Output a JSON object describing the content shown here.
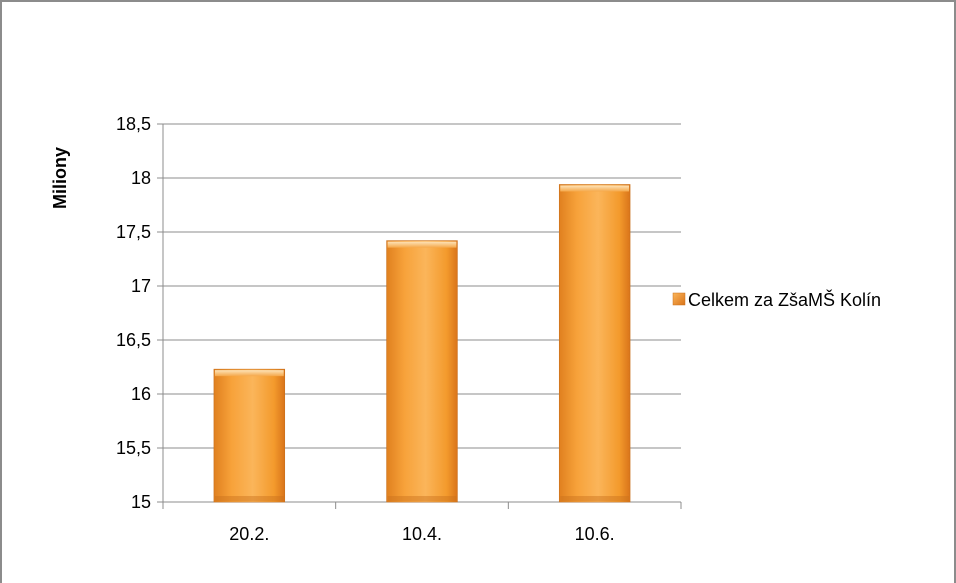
{
  "chart_data": {
    "type": "bar",
    "title": "",
    "xlabel": "",
    "ylabel": "Miliony",
    "ylim": [
      15,
      18.5
    ],
    "ytick_values": [
      15,
      15.5,
      16,
      16.5,
      17,
      17.5,
      18,
      18.5
    ],
    "ytick_labels": [
      "15",
      "15,5",
      "16",
      "16,5",
      "17",
      "17,5",
      "18",
      "18,5"
    ],
    "categories": [
      "20.2.",
      "10.4.",
      "10.6."
    ],
    "series": [
      {
        "name": "Celkem za ZšaMŠ Kolín",
        "values": [
          16.23,
          17.42,
          17.94
        ],
        "color": "#f39a2c"
      }
    ],
    "grid": true,
    "legend_position": "right"
  },
  "colors": {
    "bar_light": "#fcc273",
    "bar_main": "#f39a2c",
    "bar_dark": "#d9741a",
    "gridline": "#8c8c8c",
    "frame": "#8c8c8c"
  }
}
